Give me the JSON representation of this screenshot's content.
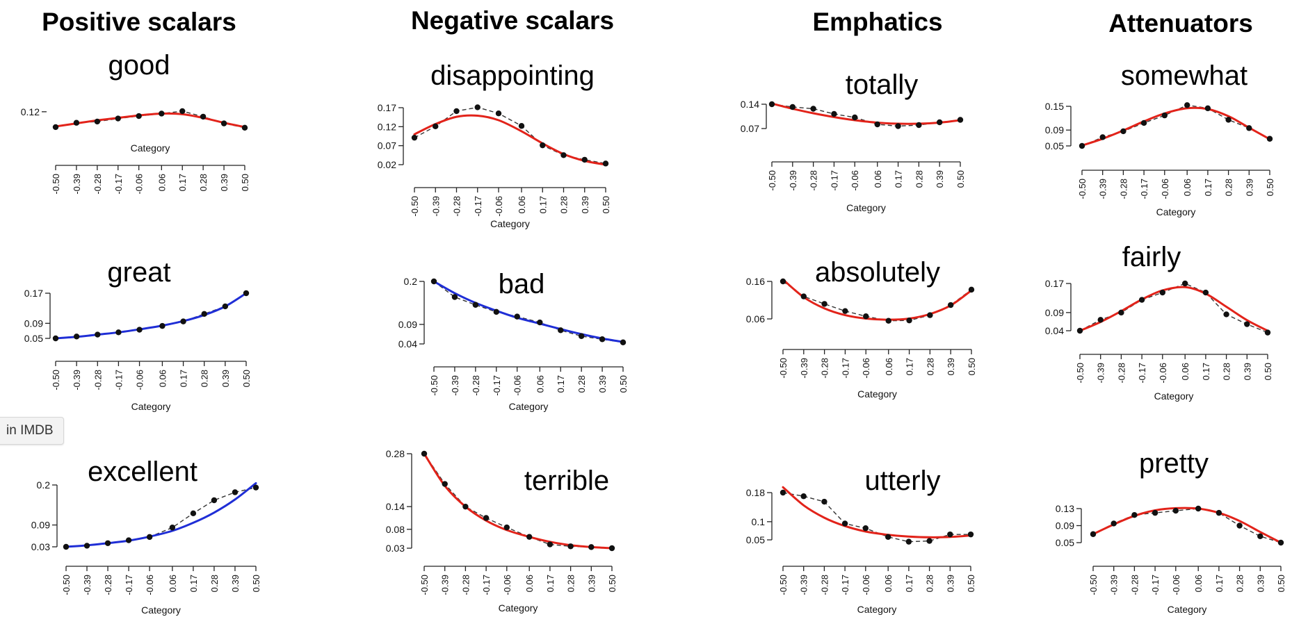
{
  "tooltip": {
    "text": "in IMDB"
  },
  "colors": {
    "red": "#e2231a",
    "blue": "#1f2ed6",
    "points": "#111111",
    "axis": "#222222"
  },
  "columns": [
    {
      "title": "Positive scalars"
    },
    {
      "title": "Negative scalars"
    },
    {
      "title": "Emphatics"
    },
    {
      "title": "Attenuators"
    }
  ],
  "chart_data": [
    {
      "word": "good",
      "type": "line",
      "fit_color": "red",
      "x": [
        -0.5,
        -0.39,
        -0.28,
        -0.17,
        -0.06,
        0.06,
        0.17,
        0.28,
        0.39,
        0.5
      ],
      "points": [
        0.095,
        0.102,
        0.104,
        0.109,
        0.113,
        0.117,
        0.121,
        0.112,
        0.101,
        0.094
      ],
      "fit": [
        0.096,
        0.101,
        0.106,
        0.11,
        0.114,
        0.117,
        0.116,
        0.11,
        0.102,
        0.095
      ],
      "yticks": [
        "0.12"
      ],
      "yticks_v": [
        0.12
      ],
      "ylim": [
        0.07,
        0.13
      ],
      "xticklabels": [
        "-0.50",
        "-0.39",
        "-0.28",
        "-0.17",
        "-0.06",
        "0.06",
        "0.17",
        "0.28",
        "0.39",
        "0.50"
      ],
      "xlabel": "Category"
    },
    {
      "word": "disappointing",
      "type": "line",
      "fit_color": "red",
      "x": [
        -0.5,
        -0.39,
        -0.28,
        -0.17,
        -0.06,
        0.06,
        0.17,
        0.28,
        0.39,
        0.5
      ],
      "points": [
        0.091,
        0.121,
        0.161,
        0.171,
        0.155,
        0.122,
        0.071,
        0.045,
        0.033,
        0.023
      ],
      "fit": [
        0.1,
        0.127,
        0.146,
        0.149,
        0.137,
        0.108,
        0.076,
        0.048,
        0.03,
        0.02
      ],
      "yticks": [
        "0.17",
        "0.12",
        "0.07",
        "0.02"
      ],
      "yticks_v": [
        0.17,
        0.12,
        0.07,
        0.02
      ],
      "ylim": [
        0.02,
        0.17
      ],
      "xticklabels": [
        "-0.50",
        "-0.39",
        "-0.28",
        "-0.17",
        "-0.06",
        "0.06",
        "0.17",
        "0.28",
        "0.39",
        "0.50"
      ],
      "xlabel": "Category"
    },
    {
      "word": "totally",
      "type": "line",
      "fit_color": "red",
      "x": [
        -0.5,
        -0.39,
        -0.28,
        -0.17,
        -0.06,
        0.06,
        0.17,
        0.28,
        0.39,
        0.5
      ],
      "points": [
        0.14,
        0.132,
        0.127,
        0.112,
        0.102,
        0.082,
        0.077,
        0.08,
        0.088,
        0.095
      ],
      "fit": [
        0.142,
        0.127,
        0.114,
        0.103,
        0.094,
        0.087,
        0.084,
        0.084,
        0.087,
        0.094
      ],
      "yticks": [
        "0.14",
        "0.07"
      ],
      "yticks_v": [
        0.14,
        0.07
      ],
      "ylim": [
        0.07,
        0.14
      ],
      "xticklabels": [
        "-0.50",
        "-0.39",
        "-0.28",
        "-0.17",
        "-0.06",
        "0.06",
        "0.17",
        "0.28",
        "0.39",
        "0.50"
      ],
      "xlabel": "Category"
    },
    {
      "word": "somewhat",
      "type": "line",
      "fit_color": "red",
      "x": [
        -0.5,
        -0.39,
        -0.28,
        -0.17,
        -0.06,
        0.06,
        0.17,
        0.28,
        0.39,
        0.5
      ],
      "points": [
        0.05,
        0.072,
        0.087,
        0.108,
        0.127,
        0.153,
        0.145,
        0.116,
        0.095,
        0.068
      ],
      "fit": [
        0.051,
        0.068,
        0.089,
        0.112,
        0.132,
        0.145,
        0.143,
        0.125,
        0.096,
        0.067
      ],
      "yticks": [
        "0.15",
        "0.09",
        "0.05"
      ],
      "yticks_v": [
        0.15,
        0.09,
        0.05
      ],
      "ylim": [
        0.05,
        0.15
      ],
      "xticklabels": [
        "-0.50",
        "-0.39",
        "-0.28",
        "-0.17",
        "-0.06",
        "0.06",
        "0.17",
        "0.28",
        "0.39",
        "0.50"
      ],
      "xlabel": "Category"
    },
    {
      "word": "great",
      "type": "line",
      "fit_color": "blue",
      "x": [
        -0.5,
        -0.39,
        -0.28,
        -0.17,
        -0.06,
        0.06,
        0.17,
        0.28,
        0.39,
        0.5
      ],
      "points": [
        0.05,
        0.055,
        0.06,
        0.066,
        0.073,
        0.083,
        0.095,
        0.115,
        0.135,
        0.17
      ],
      "fit": [
        0.05,
        0.054,
        0.06,
        0.066,
        0.074,
        0.084,
        0.096,
        0.112,
        0.135,
        0.17
      ],
      "yticks": [
        "0.17",
        "0.09",
        "0.05"
      ],
      "yticks_v": [
        0.17,
        0.09,
        0.05
      ],
      "ylim": [
        0.05,
        0.17
      ],
      "xticklabels": [
        "-0.50",
        "-0.39",
        "-0.28",
        "-0.17",
        "-0.06",
        "0.06",
        "0.17",
        "0.28",
        "0.39",
        "0.50"
      ],
      "xlabel": "Category"
    },
    {
      "word": "bad",
      "type": "line",
      "fit_color": "blue",
      "x": [
        -0.5,
        -0.39,
        -0.28,
        -0.17,
        -0.06,
        0.06,
        0.17,
        0.28,
        0.39,
        0.5
      ],
      "points": [
        0.2,
        0.16,
        0.14,
        0.122,
        0.11,
        0.095,
        0.075,
        0.06,
        0.052,
        0.044
      ],
      "fit": [
        0.2,
        0.17,
        0.145,
        0.125,
        0.107,
        0.092,
        0.078,
        0.065,
        0.054,
        0.045
      ],
      "yticks": [
        "0.2",
        "0.09",
        "0.04"
      ],
      "yticks_v": [
        0.2,
        0.09,
        0.04
      ],
      "ylim": [
        0.04,
        0.2
      ],
      "xticklabels": [
        "-0.50",
        "-0.39",
        "-0.28",
        "-0.17",
        "-0.06",
        "0.06",
        "0.17",
        "0.28",
        "0.39",
        "0.50"
      ],
      "xlabel": "Category"
    },
    {
      "word": "absolutely",
      "type": "line",
      "fit_color": "red",
      "x": [
        -0.5,
        -0.39,
        -0.28,
        -0.17,
        -0.06,
        0.06,
        0.17,
        0.28,
        0.39,
        0.5
      ],
      "points": [
        0.16,
        0.12,
        0.1,
        0.081,
        0.067,
        0.055,
        0.056,
        0.07,
        0.097,
        0.138
      ],
      "fit": [
        0.165,
        0.118,
        0.088,
        0.07,
        0.061,
        0.058,
        0.061,
        0.073,
        0.096,
        0.136
      ],
      "yticks": [
        "0.16",
        "0.06"
      ],
      "yticks_v": [
        0.16,
        0.06
      ],
      "ylim": [
        0.06,
        0.16
      ],
      "xticklabels": [
        "-0.50",
        "-0.39",
        "-0.28",
        "-0.17",
        "-0.06",
        "0.06",
        "0.17",
        "0.28",
        "0.39",
        "0.50"
      ],
      "xlabel": "Category"
    },
    {
      "word": "fairly",
      "type": "line",
      "fit_color": "red",
      "x": [
        -0.5,
        -0.39,
        -0.28,
        -0.17,
        -0.06,
        0.06,
        0.17,
        0.28,
        0.39,
        0.5
      ],
      "points": [
        0.04,
        0.07,
        0.09,
        0.125,
        0.145,
        0.17,
        0.145,
        0.085,
        0.058,
        0.035
      ],
      "fit": [
        0.04,
        0.064,
        0.094,
        0.126,
        0.151,
        0.16,
        0.142,
        0.106,
        0.069,
        0.04
      ],
      "yticks": [
        "0.17",
        "0.09",
        "0.04"
      ],
      "yticks_v": [
        0.17,
        0.09,
        0.04
      ],
      "ylim": [
        0.04,
        0.17
      ],
      "xticklabels": [
        "-0.50",
        "-0.39",
        "-0.28",
        "-0.17",
        "-0.06",
        "0.06",
        "0.17",
        "0.28",
        "0.39",
        "0.50"
      ],
      "xlabel": "Category"
    },
    {
      "word": "excellent",
      "type": "line",
      "fit_color": "blue",
      "x": [
        -0.5,
        -0.39,
        -0.28,
        -0.17,
        -0.06,
        0.06,
        0.17,
        0.28,
        0.39,
        0.5
      ],
      "points": [
        0.03,
        0.033,
        0.04,
        0.048,
        0.057,
        0.083,
        0.122,
        0.158,
        0.18,
        0.193
      ],
      "fit": [
        0.03,
        0.034,
        0.04,
        0.047,
        0.058,
        0.074,
        0.096,
        0.124,
        0.16,
        0.205
      ],
      "yticks": [
        "0.2",
        "0.09",
        "0.03"
      ],
      "yticks_v": [
        0.2,
        0.09,
        0.03
      ],
      "ylim": [
        0.03,
        0.2
      ],
      "xticklabels": [
        "-0.50",
        "-0.39",
        "-0.28",
        "-0.17",
        "-0.06",
        "0.06",
        "0.17",
        "0.28",
        "0.39",
        "0.50"
      ],
      "xlabel": "Category"
    },
    {
      "word": "terrible",
      "type": "line",
      "fit_color": "red",
      "x": [
        -0.5,
        -0.39,
        -0.28,
        -0.17,
        -0.06,
        0.06,
        0.17,
        0.28,
        0.39,
        0.5
      ],
      "points": [
        0.28,
        0.2,
        0.14,
        0.11,
        0.085,
        0.06,
        0.04,
        0.035,
        0.033,
        0.03
      ],
      "fit": [
        0.28,
        0.195,
        0.14,
        0.103,
        0.078,
        0.06,
        0.047,
        0.038,
        0.033,
        0.03
      ],
      "yticks": [
        "0.28",
        "0.14",
        "0.08",
        "0.03"
      ],
      "yticks_v": [
        0.28,
        0.14,
        0.08,
        0.03
      ],
      "ylim": [
        0.03,
        0.28
      ],
      "xticklabels": [
        "-0.50",
        "-0.39",
        "-0.28",
        "-0.17",
        "-0.06",
        "0.06",
        "0.17",
        "0.28",
        "0.39",
        "0.50"
      ],
      "xlabel": "Category"
    },
    {
      "word": "utterly",
      "type": "line",
      "fit_color": "red",
      "x": [
        -0.5,
        -0.39,
        -0.28,
        -0.17,
        -0.06,
        0.06,
        0.17,
        0.28,
        0.39,
        0.5
      ],
      "points": [
        0.18,
        0.17,
        0.155,
        0.095,
        0.082,
        0.058,
        0.045,
        0.047,
        0.065,
        0.065
      ],
      "fit": [
        0.195,
        0.145,
        0.111,
        0.088,
        0.073,
        0.064,
        0.059,
        0.057,
        0.058,
        0.062
      ],
      "yticks": [
        "0.18",
        "0.1",
        "0.05"
      ],
      "yticks_v": [
        0.18,
        0.1,
        0.05
      ],
      "ylim": [
        0.05,
        0.18
      ],
      "xticklabels": [
        "-0.50",
        "-0.39",
        "-0.28",
        "-0.17",
        "-0.06",
        "0.06",
        "0.17",
        "0.28",
        "0.39",
        "0.50"
      ],
      "xlabel": "Category"
    },
    {
      "word": "pretty",
      "type": "line",
      "fit_color": "red",
      "x": [
        -0.5,
        -0.39,
        -0.28,
        -0.17,
        -0.06,
        0.06,
        0.17,
        0.28,
        0.39,
        0.5
      ],
      "points": [
        0.07,
        0.095,
        0.115,
        0.12,
        0.125,
        0.13,
        0.12,
        0.09,
        0.065,
        0.05
      ],
      "fit": [
        0.07,
        0.093,
        0.113,
        0.126,
        0.131,
        0.13,
        0.12,
        0.101,
        0.075,
        0.05
      ],
      "yticks": [
        "0.13",
        "0.09",
        "0.05"
      ],
      "yticks_v": [
        0.13,
        0.09,
        0.05
      ],
      "ylim": [
        0.05,
        0.13
      ],
      "xticklabels": [
        "-0.50",
        "-0.39",
        "-0.28",
        "-0.17",
        "-0.06",
        "0.06",
        "0.17",
        "0.28",
        "0.39",
        "0.50"
      ],
      "xlabel": "Category"
    }
  ]
}
